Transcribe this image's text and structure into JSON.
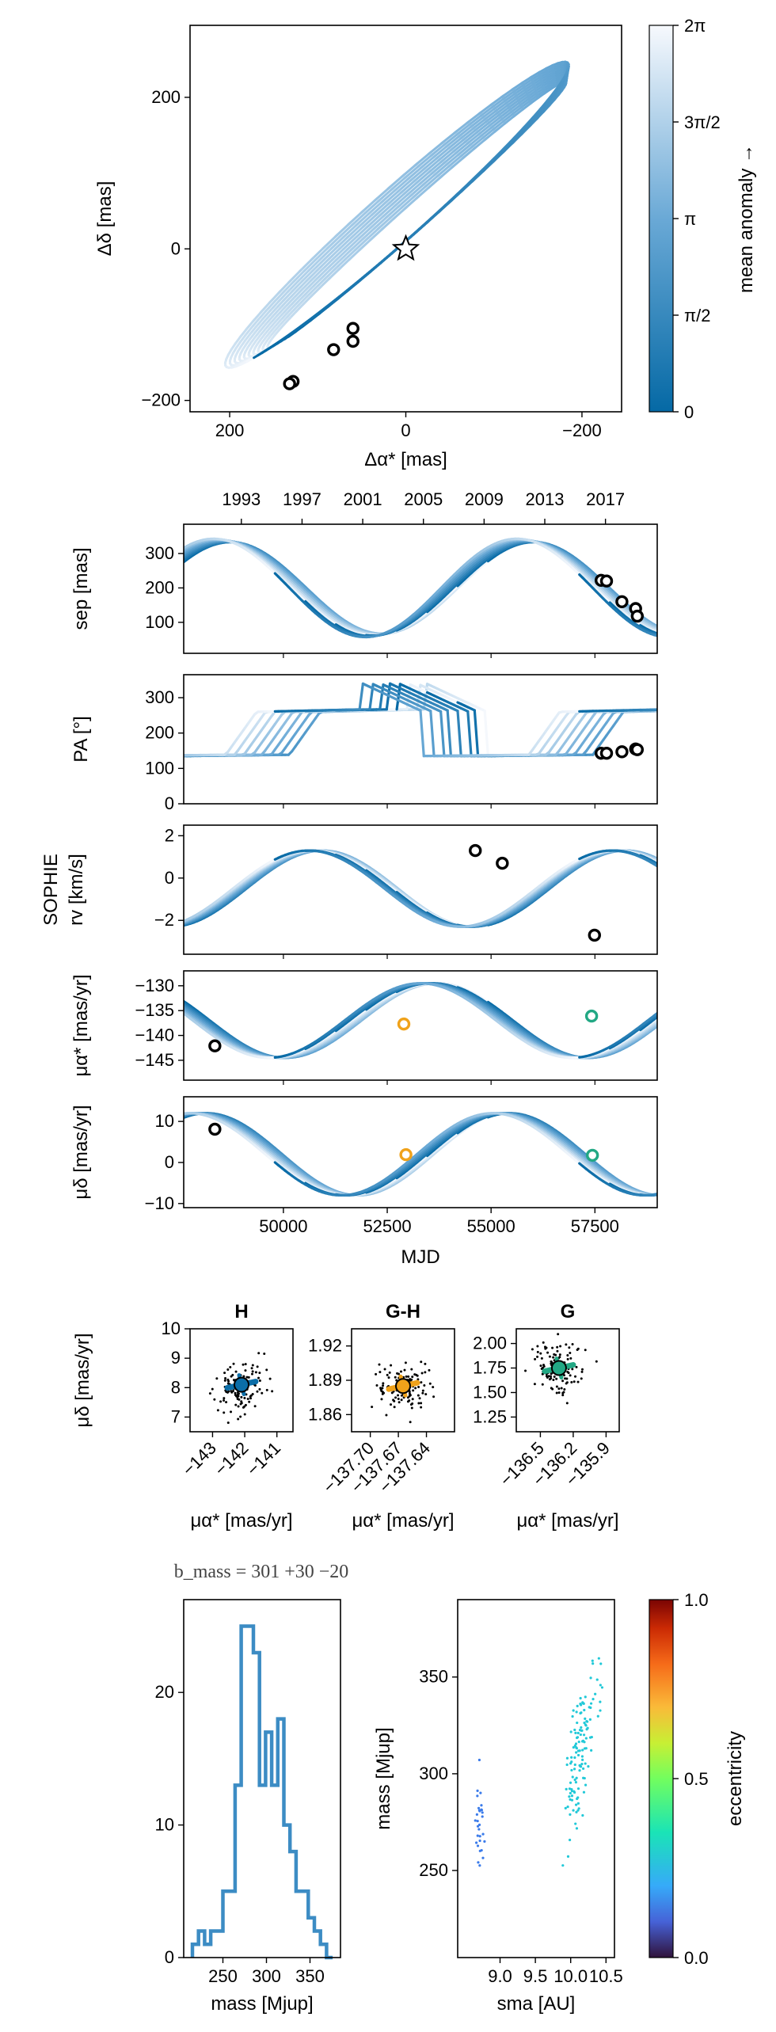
{
  "colors": {
    "orbit_dark": "#0b6ea8",
    "orbit_mid": "#5aa1d3",
    "orbit_light": "#dbe9f5",
    "hist": "#3c8cc4",
    "orange": "#f0a21a",
    "green": "#22a884",
    "black": "#000000"
  },
  "chart_data": [
    {
      "id": "astrometry",
      "type": "line",
      "xlabel": "Δα* [mas]",
      "ylabel": "Δδ [mas]",
      "xlim": [
        245,
        -245
      ],
      "ylim": [
        -215,
        295
      ],
      "xticks": [
        {
          "v": 200,
          "label": "200"
        },
        {
          "v": 0,
          "label": "0"
        },
        {
          "v": -200,
          "label": "−200"
        }
      ],
      "yticks": [
        {
          "v": 200,
          "label": "200"
        },
        {
          "v": 0,
          "label": "0"
        },
        {
          "v": -200,
          "label": "−200"
        }
      ],
      "ellipse": {
        "center": [
          0,
          45
        ],
        "semi_major": 262,
        "semi_minor": 22,
        "angle_deg": 46
      },
      "star": [
        0,
        0
      ],
      "points": [
        [
          128,
          -175
        ],
        [
          132,
          -178
        ],
        [
          82,
          -133
        ],
        [
          60,
          -105
        ],
        [
          60,
          -122
        ]
      ],
      "colorbar": {
        "label": "mean anomaly →",
        "ticks": [
          "0",
          "π/2",
          "π",
          "3π/2",
          "2π"
        ]
      }
    },
    {
      "id": "time_series",
      "type": "line",
      "xlabel": "MJD",
      "xlim": [
        47600,
        59000
      ],
      "xticks": [
        {
          "v": 50000,
          "label": "50000"
        },
        {
          "v": 52500,
          "label": "52500"
        },
        {
          "v": 55000,
          "label": "55000"
        },
        {
          "v": 57500,
          "label": "57500"
        }
      ],
      "year_ticks": [
        {
          "v": 48988,
          "label": "1993"
        },
        {
          "v": 50449,
          "label": "1997"
        },
        {
          "v": 51910,
          "label": "2001"
        },
        {
          "v": 53371,
          "label": "2005"
        },
        {
          "v": 54832,
          "label": "2009"
        },
        {
          "v": 56293,
          "label": "2013"
        },
        {
          "v": 57754,
          "label": "2017"
        }
      ],
      "panels": [
        {
          "id": "sep",
          "ylabel": "sep [mas]",
          "ylim": [
            10,
            385
          ],
          "yticks": [
            {
              "v": 100,
              "label": "100"
            },
            {
              "v": 200,
              "label": "200"
            },
            {
              "v": 300,
              "label": "300"
            }
          ],
          "points": [
            [
              57650,
              222
            ],
            [
              57780,
              220
            ],
            [
              58150,
              160
            ],
            [
              58480,
              140
            ],
            [
              58520,
              118
            ]
          ]
        },
        {
          "id": "pa",
          "ylabel": "PA [°]",
          "ylim": [
            0,
            365
          ],
          "yticks": [
            {
              "v": 0,
              "label": "0"
            },
            {
              "v": 100,
              "label": "100"
            },
            {
              "v": 200,
              "label": "200"
            },
            {
              "v": 300,
              "label": "300"
            }
          ],
          "points": [
            [
              57650,
              143
            ],
            [
              57780,
              143
            ],
            [
              58150,
              147
            ],
            [
              58480,
              155
            ],
            [
              58520,
              153
            ]
          ]
        },
        {
          "id": "rv",
          "ylabel_top": "SOPHIE",
          "ylabel": "rv [km/s]",
          "ylim": [
            -3.6,
            2.5
          ],
          "yticks": [
            {
              "v": -2,
              "label": "−2"
            },
            {
              "v": 0,
              "label": "0"
            },
            {
              "v": 2,
              "label": "2"
            }
          ],
          "points": [
            [
              54620,
              1.3
            ],
            [
              55270,
              0.7
            ],
            [
              57490,
              -2.7
            ]
          ]
        },
        {
          "id": "pmra",
          "ylabel": "μα* [mas/yr]",
          "ylim": [
            -149,
            -127
          ],
          "yticks": [
            {
              "v": -145,
              "label": "−145"
            },
            {
              "v": -140,
              "label": "−140"
            },
            {
              "v": -135,
              "label": "−135"
            },
            {
              "v": -130,
              "label": "−130"
            }
          ],
          "points": [
            {
              "x": 48350,
              "y": -142.1,
              "c": "black"
            },
            {
              "x": 52900,
              "y": -137.7,
              "c": "orange"
            },
            {
              "x": 57420,
              "y": -136.1,
              "c": "green"
            }
          ]
        },
        {
          "id": "pmdec",
          "ylabel": "μδ [mas/yr]",
          "ylim": [
            -11,
            16
          ],
          "yticks": [
            {
              "v": -10,
              "label": "−10"
            },
            {
              "v": 0,
              "label": "0"
            },
            {
              "v": 10,
              "label": "10"
            }
          ],
          "points": [
            {
              "x": 48350,
              "y": 8.1,
              "c": "black"
            },
            {
              "x": 52950,
              "y": 1.9,
              "c": "orange"
            },
            {
              "x": 57440,
              "y": 1.75,
              "c": "green"
            }
          ]
        }
      ],
      "colors_by_anomaly": true
    },
    {
      "id": "pm_panels",
      "type": "scatter",
      "ylabel": "μδ [mas/yr]",
      "xlabel": "μα* [mas/yr]",
      "panels": [
        {
          "title": "H",
          "xlim": [
            -143.7,
            -140.5
          ],
          "ylim": [
            6.5,
            10.0
          ],
          "xticks": [
            {
              "v": -143,
              "label": "−143"
            },
            {
              "v": -142,
              "label": "−142"
            },
            {
              "v": -141,
              "label": "−141"
            }
          ],
          "yticks": [
            {
              "v": 7,
              "label": "7"
            },
            {
              "v": 8,
              "label": "8"
            },
            {
              "v": 9,
              "label": "9"
            },
            {
              "v": 10,
              "label": "10"
            }
          ],
          "center": [
            -142.1,
            8.1
          ],
          "marker": "black"
        },
        {
          "title": "G-H",
          "xlim": [
            -137.72,
            -137.61
          ],
          "ylim": [
            1.845,
            1.935
          ],
          "xticks": [
            {
              "v": -137.7,
              "label": "−137.70"
            },
            {
              "v": -137.67,
              "label": "−137.67"
            },
            {
              "v": -137.64,
              "label": "−137.64"
            }
          ],
          "yticks": [
            {
              "v": 1.86,
              "label": "1.86"
            },
            {
              "v": 1.89,
              "label": "1.89"
            },
            {
              "v": 1.92,
              "label": "1.92"
            }
          ],
          "center": [
            -137.665,
            1.885
          ],
          "marker": "orange"
        },
        {
          "title": "G",
          "xlim": [
            -136.72,
            -135.78
          ],
          "ylim": [
            1.1,
            2.15
          ],
          "xticks": [
            {
              "v": -136.5,
              "label": "−136.5"
            },
            {
              "v": -136.2,
              "label": "−136.2"
            },
            {
              "v": -135.9,
              "label": "−135.9"
            }
          ],
          "yticks": [
            {
              "v": 1.25,
              "label": "1.25"
            },
            {
              "v": 1.5,
              "label": "1.50"
            },
            {
              "v": 1.75,
              "label": "1.75"
            },
            {
              "v": 2.0,
              "label": "2.00"
            }
          ],
          "center": [
            -136.33,
            1.75
          ],
          "marker": "green"
        }
      ]
    },
    {
      "id": "mass_hist",
      "type": "bar",
      "title": "b_mass = 301 +30 −20",
      "xlabel": "mass [Mjup]",
      "xlim": [
        205,
        385
      ],
      "ylim": [
        0,
        27
      ],
      "xticks": [
        {
          "v": 250,
          "label": "250"
        },
        {
          "v": 300,
          "label": "300"
        },
        {
          "v": 350,
          "label": "350"
        }
      ],
      "yticks": [
        {
          "v": 0,
          "label": "0"
        },
        {
          "v": 10,
          "label": "10"
        },
        {
          "v": 20,
          "label": "20"
        }
      ],
      "bin_edges": [
        215,
        222,
        229,
        236,
        243,
        250,
        257,
        264,
        271,
        278,
        285,
        292,
        299,
        306,
        313,
        320,
        327,
        334,
        341,
        348,
        355,
        362,
        369,
        376
      ],
      "counts": [
        1,
        2,
        1,
        2,
        2,
        5,
        5,
        13,
        25,
        25,
        23,
        13,
        17,
        13,
        18,
        10,
        8,
        5,
        5,
        3,
        2,
        1,
        0
      ]
    },
    {
      "id": "mass_sma",
      "type": "scatter",
      "xlabel": "sma [AU]",
      "ylabel": "mass [Mjup]",
      "xlim": [
        8.4,
        10.62
      ],
      "ylim": [
        205,
        390
      ],
      "xticks": [
        {
          "v": 9.0,
          "label": "9.0"
        },
        {
          "v": 9.5,
          "label": "9.5"
        },
        {
          "v": 10.0,
          "label": "10.0"
        },
        {
          "v": 10.5,
          "label": "10.5"
        }
      ],
      "yticks": [
        {
          "v": 250,
          "label": "250"
        },
        {
          "v": 300,
          "label": "300"
        },
        {
          "v": 350,
          "label": "350"
        }
      ],
      "colorbar": {
        "label": "eccentricity",
        "ticks": [
          "0.0",
          "0.5",
          "1.0"
        ]
      }
    }
  ]
}
